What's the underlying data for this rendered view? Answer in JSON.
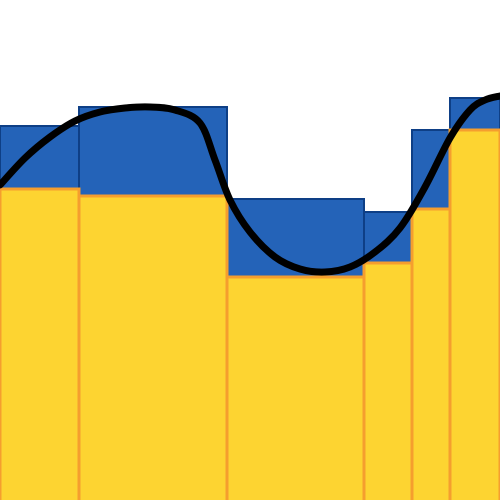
{
  "chart_data": {
    "type": "bar",
    "title": "",
    "xlabel": "",
    "ylabel": "",
    "grid": false,
    "legend": "none",
    "xlim": [
      0,
      100
    ],
    "ylim": [
      0,
      100
    ],
    "bins": [
      {
        "x0": 0,
        "x1": 15.8,
        "back": 74.8,
        "front": 62.2
      },
      {
        "x0": 15.8,
        "x1": 45.4,
        "back": 78.6,
        "front": 60.8
      },
      {
        "x0": 45.4,
        "x1": 72.8,
        "back": 60.2,
        "front": 44.6
      },
      {
        "x0": 72.8,
        "x1": 82.4,
        "back": 57.6,
        "front": 47.4
      },
      {
        "x0": 82.4,
        "x1": 90,
        "back": 74,
        "front": 58.2
      },
      {
        "x0": 90,
        "x1": 100,
        "back": 80.4,
        "front": 74
      }
    ],
    "curve": [
      {
        "x": 0,
        "y": 63
      },
      {
        "x": 5,
        "y": 68.4
      },
      {
        "x": 10,
        "y": 72.6
      },
      {
        "x": 15,
        "y": 75.8
      },
      {
        "x": 20,
        "y": 77.6
      },
      {
        "x": 25,
        "y": 78.4
      },
      {
        "x": 30,
        "y": 78.6
      },
      {
        "x": 35,
        "y": 78
      },
      {
        "x": 40,
        "y": 75.4
      },
      {
        "x": 43,
        "y": 68
      },
      {
        "x": 46,
        "y": 60
      },
      {
        "x": 50,
        "y": 53.6
      },
      {
        "x": 55,
        "y": 48.6
      },
      {
        "x": 60,
        "y": 46.2
      },
      {
        "x": 65,
        "y": 45.6
      },
      {
        "x": 70,
        "y": 46.6
      },
      {
        "x": 75,
        "y": 49.6
      },
      {
        "x": 80,
        "y": 54.4
      },
      {
        "x": 85,
        "y": 62.6
      },
      {
        "x": 90,
        "y": 72.4
      },
      {
        "x": 94,
        "y": 78
      },
      {
        "x": 97,
        "y": 80
      },
      {
        "x": 100,
        "y": 80.8
      }
    ],
    "colors": {
      "back_fill": "#2463b8",
      "back_stroke": "#0e3f86",
      "front_fill": "#fdd431",
      "front_stroke": "#f59e2e",
      "curve": "#000000",
      "background": "#ffffff"
    }
  }
}
